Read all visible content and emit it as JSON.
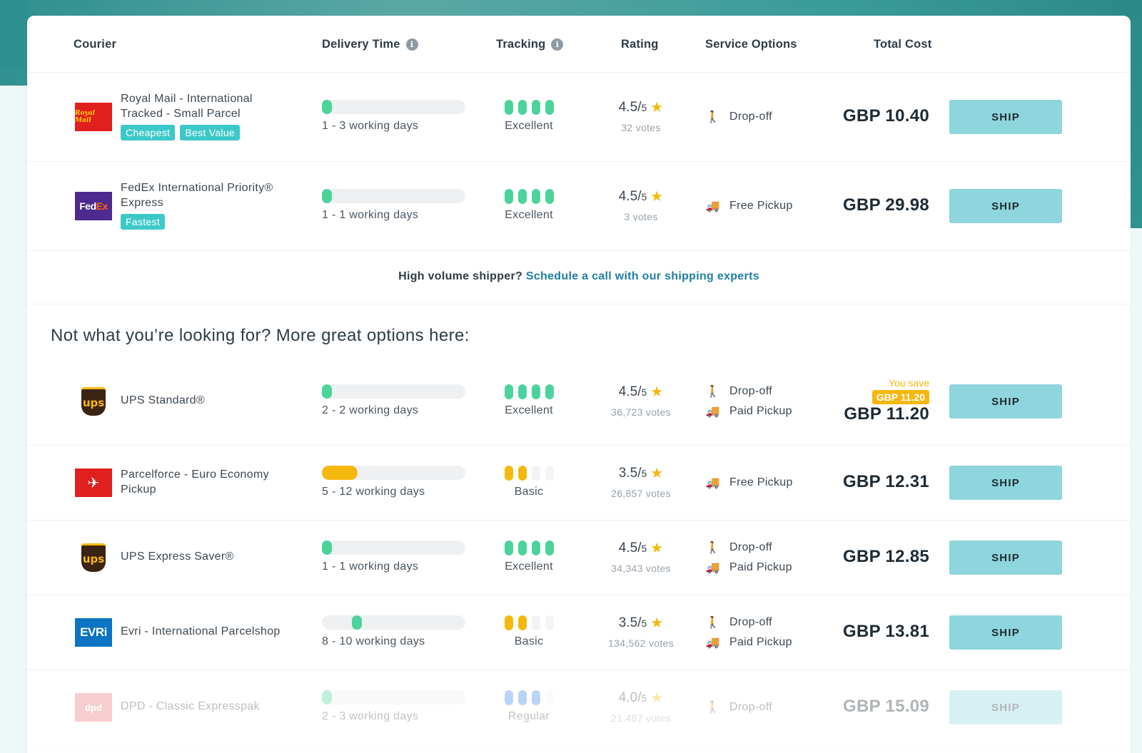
{
  "header": {
    "courier": "Courier",
    "delivery_time": "Delivery Time",
    "tracking": "Tracking",
    "rating": "Rating",
    "service_options": "Service Options",
    "total_cost": "Total Cost",
    "info_icon": "i"
  },
  "top_results": [
    {
      "logo": "royal-mail-logo",
      "logo_text": "Royal Mail",
      "name": "Royal Mail - International Tracked - Small Parcel",
      "badges": [
        "Cheapest",
        "Best Value"
      ],
      "delivery": "1 - 3 working days",
      "delivery_fill": 0.07,
      "delivery_color": "#4cd39b",
      "tracking": "Excellent",
      "tracking_level": 4,
      "tracking_color": "#4cd39b",
      "rating": "4.5/",
      "rating_den": "5",
      "votes": "32 votes",
      "services": [
        "Drop-off"
      ],
      "price": "GBP 10.40",
      "ship": "SHIP"
    },
    {
      "logo": "fedex-logo",
      "logo_text": "Fed",
      "logo_text2": "Ex",
      "name": "FedEx International Priority® Express",
      "badges": [
        "Fastest"
      ],
      "delivery": "1 - 1 working days",
      "delivery_fill": 0.07,
      "delivery_color": "#4cd39b",
      "tracking": "Excellent",
      "tracking_level": 4,
      "tracking_color": "#4cd39b",
      "rating": "4.5/",
      "rating_den": "5",
      "votes": "3 votes",
      "services": [
        "Free Pickup"
      ],
      "price": "GBP 29.98",
      "ship": "SHIP"
    }
  ],
  "cta": {
    "text": "High volume shipper?",
    "link": "Schedule a call with our shipping experts"
  },
  "more_title": "Not what you’re looking for? More great options here:",
  "more_results": [
    {
      "logo": "ups-logo",
      "logo_text": "ups",
      "name": "UPS Standard®",
      "delivery": "2 - 2 working days",
      "delivery_fill": 0.07,
      "delivery_color": "#4cd39b",
      "tracking": "Excellent",
      "tracking_level": 4,
      "tracking_color": "#4cd39b",
      "rating": "4.5/",
      "rating_den": "5",
      "votes": "36,723 votes",
      "services": [
        "Drop-off",
        "Paid Pickup"
      ],
      "save_label": "You save",
      "save_value": "GBP 11.20",
      "price": "GBP 11.20",
      "ship": "SHIP"
    },
    {
      "logo": "parcelforce-logo",
      "logo_text": "✈",
      "name": "Parcelforce - Euro Economy Pickup",
      "delivery": "5 - 12 working days",
      "delivery_fill": 0.25,
      "delivery_color": "#f5b80f",
      "tracking": "Basic",
      "tracking_level": 2,
      "tracking_color": "#f5b80f",
      "rating": "3.5/",
      "rating_den": "5",
      "votes": "26,857 votes",
      "services": [
        "Free Pickup"
      ],
      "price": "GBP 12.31",
      "ship": "SHIP"
    },
    {
      "logo": "ups-logo",
      "logo_text": "ups",
      "name": "UPS Express Saver®",
      "delivery": "1 - 1 working days",
      "delivery_fill": 0.07,
      "delivery_color": "#4cd39b",
      "tracking": "Excellent",
      "tracking_level": 4,
      "tracking_color": "#4cd39b",
      "rating": "4.5/",
      "rating_den": "5",
      "votes": "34,343 votes",
      "services": [
        "Drop-off",
        "Paid Pickup"
      ],
      "price": "GBP 12.85",
      "ship": "SHIP"
    },
    {
      "logo": "evri-logo",
      "logo_text": "EVRi",
      "name": "Evri - International Parcelshop",
      "delivery": "8 - 10 working days",
      "delivery_fill": 0.07,
      "delivery_offset": 0.21,
      "delivery_color": "#4cd39b",
      "tracking": "Basic",
      "tracking_level": 2,
      "tracking_color": "#f5b80f",
      "rating": "3.5/",
      "rating_den": "5",
      "votes": "134,562 votes",
      "services": [
        "Drop-off",
        "Paid Pickup"
      ],
      "price": "GBP 13.81",
      "ship": "SHIP"
    },
    {
      "logo": "dpd-logo",
      "logo_text": "dpd",
      "name": "DPD - Classic Expresspak",
      "delivery": "2 - 3 working days",
      "delivery_fill": 0.07,
      "delivery_color": "#4cd39b",
      "tracking": "Regular",
      "tracking_level": 3,
      "tracking_color": "#3d86e8",
      "rating": "4.0/",
      "rating_den": "5",
      "votes": "21,487 votes",
      "services": [
        "Drop-off"
      ],
      "price": "GBP 15.09",
      "ship": "SHIP"
    }
  ],
  "icons": {
    "dropoff": "person-walking-icon",
    "pickup": "truck-icon",
    "star": "star-icon"
  },
  "colors": {
    "ship_button": "#8fd5dd",
    "badge": "#3dc8c8",
    "link": "#1f7fa0",
    "save": "#f5b80f"
  }
}
